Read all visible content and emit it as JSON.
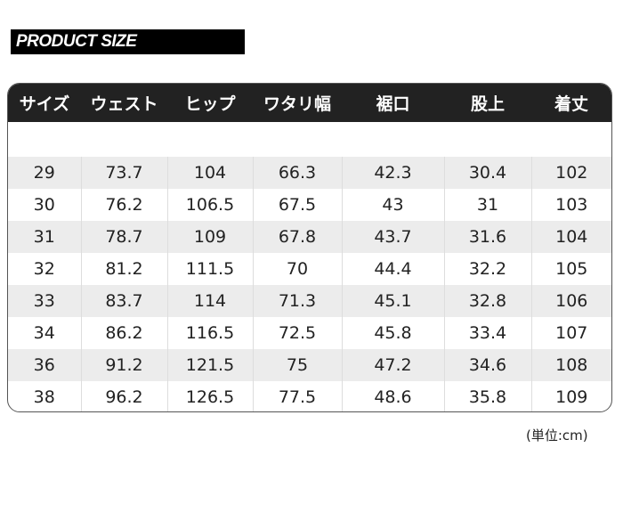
{
  "title": "PRODUCT SIZE",
  "headers": [
    "サイズ",
    "ウェスト",
    "ヒップ",
    "ワタリ幅",
    "裾口",
    "股上",
    "着丈"
  ],
  "rows": [
    [
      "29",
      "73.7",
      "104",
      "66.3",
      "42.3",
      "30.4",
      "102"
    ],
    [
      "30",
      "76.2",
      "106.5",
      "67.5",
      "43",
      "31",
      "103"
    ],
    [
      "31",
      "78.7",
      "109",
      "67.8",
      "43.7",
      "31.6",
      "104"
    ],
    [
      "32",
      "81.2",
      "111.5",
      "70",
      "44.4",
      "32.2",
      "105"
    ],
    [
      "33",
      "83.7",
      "114",
      "71.3",
      "45.1",
      "32.8",
      "106"
    ],
    [
      "34",
      "86.2",
      "116.5",
      "72.5",
      "45.8",
      "33.4",
      "107"
    ],
    [
      "36",
      "91.2",
      "121.5",
      "75",
      "47.2",
      "34.6",
      "108"
    ],
    [
      "38",
      "96.2",
      "126.5",
      "77.5",
      "48.6",
      "35.8",
      "109"
    ]
  ],
  "unit": "(単位:cm)"
}
